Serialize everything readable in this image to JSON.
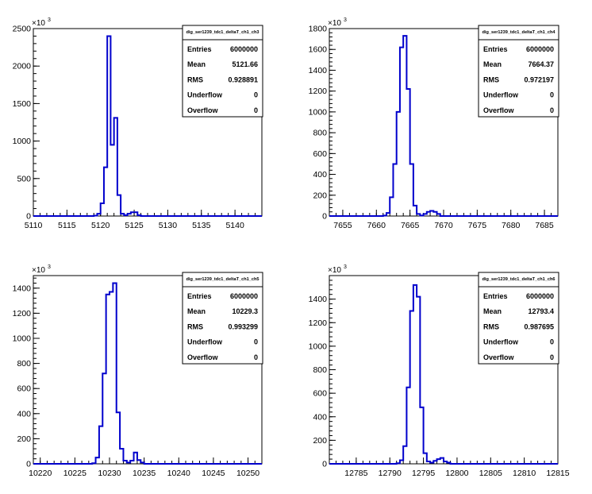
{
  "chart_data": [
    {
      "type": "bar",
      "title": "",
      "xlabel": "",
      "ylabel": "",
      "y_multiplier": "×10",
      "y_multiplier_exp": "3",
      "xlim": [
        5110,
        5144
      ],
      "ylim": [
        0,
        2500
      ],
      "xticks": [
        5110,
        5115,
        5120,
        5125,
        5130,
        5135,
        5140
      ],
      "yticks": [
        0,
        500,
        1000,
        1500,
        2000,
        2500
      ],
      "bin_start": 5110,
      "bin_width": 0.5,
      "values": [
        0,
        0,
        0,
        0,
        0,
        0,
        0,
        0,
        0,
        0,
        0,
        0,
        0,
        0,
        0,
        0,
        0,
        0,
        5,
        30,
        170,
        650,
        2400,
        950,
        1310,
        280,
        30,
        10,
        30,
        50,
        50,
        10,
        0,
        0,
        0,
        0,
        0,
        0,
        0,
        0,
        0,
        0,
        0,
        0,
        0,
        0,
        0,
        0,
        0,
        0,
        0,
        0,
        0,
        0,
        0,
        0,
        0,
        0,
        0,
        0,
        0,
        0,
        0,
        0,
        0,
        0,
        0,
        0
      ],
      "stats": {
        "name": "dig_ser1239_tdc1_deltaT_ch1_ch3",
        "entries_label": "Entries",
        "entries": "6000000",
        "mean_label": "Mean",
        "mean": "5121.66",
        "rms_label": "RMS",
        "rms": "0.928891",
        "underflow_label": "Underflow",
        "underflow": "0",
        "overflow_label": "Overflow",
        "overflow": "0"
      }
    },
    {
      "type": "bar",
      "title": "",
      "xlabel": "",
      "ylabel": "",
      "y_multiplier": "×10",
      "y_multiplier_exp": "3",
      "xlim": [
        7653,
        7687
      ],
      "ylim": [
        0,
        1800
      ],
      "xticks": [
        7655,
        7660,
        7665,
        7670,
        7675,
        7680,
        7685
      ],
      "yticks": [
        0,
        200,
        400,
        600,
        800,
        1000,
        1200,
        1400,
        1600,
        1800
      ],
      "bin_start": 7653,
      "bin_width": 0.5,
      "values": [
        0,
        0,
        0,
        0,
        0,
        0,
        0,
        0,
        0,
        0,
        0,
        0,
        0,
        0,
        0,
        0,
        5,
        30,
        180,
        500,
        1000,
        1620,
        1730,
        1220,
        500,
        100,
        20,
        5,
        20,
        40,
        50,
        40,
        20,
        0,
        0,
        0,
        0,
        0,
        0,
        0,
        0,
        0,
        0,
        0,
        0,
        0,
        0,
        0,
        0,
        0,
        0,
        0,
        0,
        0,
        0,
        0,
        0,
        0,
        0,
        0,
        0,
        0,
        0,
        0,
        0,
        0,
        0,
        0
      ],
      "stats": {
        "name": "dig_ser1239_tdc1_deltaT_ch1_ch4",
        "entries_label": "Entries",
        "entries": "6000000",
        "mean_label": "Mean",
        "mean": "7664.37",
        "rms_label": "RMS",
        "rms": "0.972197",
        "underflow_label": "Underflow",
        "underflow": "0",
        "overflow_label": "Overflow",
        "overflow": "0"
      }
    },
    {
      "type": "bar",
      "title": "",
      "xlabel": "",
      "ylabel": "",
      "y_multiplier": "×10",
      "y_multiplier_exp": "3",
      "xlim": [
        10219,
        10252
      ],
      "ylim": [
        0,
        1500
      ],
      "xticks": [
        10220,
        10225,
        10230,
        10235,
        10240,
        10245,
        10250
      ],
      "yticks": [
        0,
        200,
        400,
        600,
        800,
        1000,
        1200,
        1400
      ],
      "bin_start": 10219,
      "bin_width": 0.5,
      "values": [
        0,
        0,
        0,
        0,
        0,
        0,
        0,
        0,
        0,
        0,
        0,
        0,
        0,
        0,
        0,
        0,
        0,
        5,
        50,
        300,
        720,
        1350,
        1370,
        1440,
        410,
        120,
        25,
        10,
        25,
        90,
        30,
        10,
        0,
        0,
        0,
        0,
        0,
        0,
        0,
        0,
        0,
        0,
        0,
        0,
        0,
        0,
        0,
        0,
        0,
        0,
        0,
        0,
        0,
        0,
        0,
        0,
        0,
        0,
        0,
        0,
        0,
        0,
        0,
        0,
        0,
        0,
        0
      ],
      "stats": {
        "name": "dig_ser1239_tdc1_deltaT_ch1_ch5",
        "entries_label": "Entries",
        "entries": "6000000",
        "mean_label": "Mean",
        "mean": "10229.3",
        "rms_label": "RMS",
        "rms": "0.993299",
        "underflow_label": "Underflow",
        "underflow": "0",
        "overflow_label": "Overflow",
        "overflow": "0"
      }
    },
    {
      "type": "bar",
      "title": "",
      "xlabel": "",
      "ylabel": "",
      "y_multiplier": "×10",
      "y_multiplier_exp": "3",
      "xlim": [
        12781,
        12815
      ],
      "ylim": [
        0,
        1600
      ],
      "xticks": [
        12785,
        12790,
        12795,
        12800,
        12805,
        12810,
        12815
      ],
      "yticks": [
        0,
        200,
        400,
        600,
        800,
        1000,
        1200,
        1400
      ],
      "bin_start": 12781,
      "bin_width": 0.5,
      "values": [
        0,
        0,
        0,
        0,
        0,
        0,
        0,
        0,
        0,
        0,
        0,
        0,
        0,
        0,
        0,
        0,
        0,
        0,
        0,
        0,
        5,
        30,
        150,
        650,
        1300,
        1520,
        1420,
        480,
        90,
        20,
        10,
        25,
        40,
        50,
        20,
        10,
        0,
        0,
        0,
        0,
        0,
        0,
        0,
        0,
        0,
        0,
        0,
        0,
        0,
        0,
        0,
        0,
        0,
        0,
        0,
        0,
        0,
        0,
        0,
        0,
        0,
        0,
        0,
        0,
        0,
        0,
        0,
        0
      ],
      "stats": {
        "name": "dig_ser1239_tdc1_deltaT_ch1_ch6",
        "entries_label": "Entries",
        "entries": "6000000",
        "mean_label": "Mean",
        "mean": "12793.4",
        "rms_label": "RMS",
        "rms": "0.987695",
        "underflow_label": "Underflow",
        "underflow": "0",
        "overflow_label": "Overflow",
        "overflow": "0"
      }
    }
  ],
  "colors": {
    "line": "#0000cc",
    "axis": "#000000",
    "background": "#ffffff"
  }
}
